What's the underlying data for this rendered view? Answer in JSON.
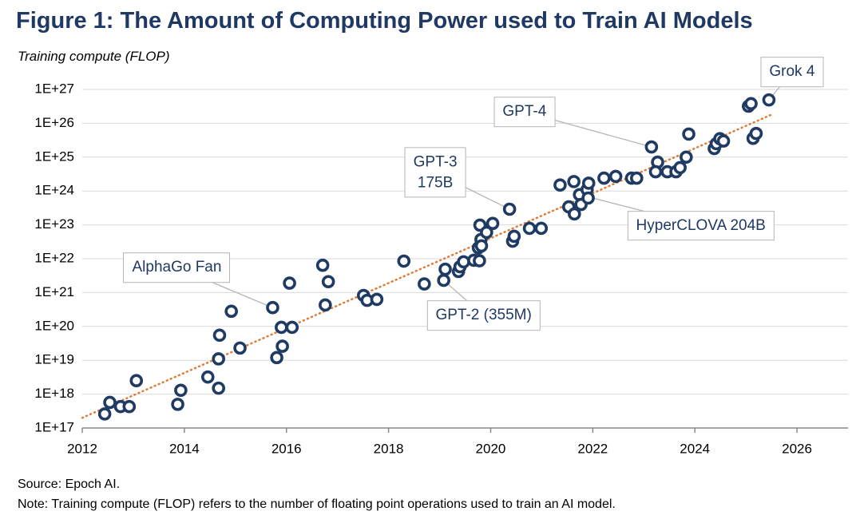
{
  "chart_data": {
    "type": "scatter",
    "title": "Figure 1: The Amount of Computing Power used to Train AI Models",
    "y_label": "Training compute (FLOP)",
    "source": "Source: Epoch AI.",
    "note": "Note: Training compute (FLOP) refers to the number of floating point operations used to train an AI model.",
    "log_y": true,
    "grid": true,
    "color": "#1f3b63",
    "xlim": [
      2012,
      2027
    ],
    "xticks": [
      2012,
      2014,
      2016,
      2018,
      2020,
      2022,
      2024,
      2026
    ],
    "ylim": [
      1e+17,
      1e+27
    ],
    "yticks": [
      {
        "value": 1e+17,
        "label": "1E+17"
      },
      {
        "value": 1e+18,
        "label": "1E+18"
      },
      {
        "value": 1e+19,
        "label": "1E+19"
      },
      {
        "value": 1e+20,
        "label": "1E+20"
      },
      {
        "value": 1e+21,
        "label": "1E+21"
      },
      {
        "value": 1e+22,
        "label": "1E+22"
      },
      {
        "value": 1e+23,
        "label": "1E+23"
      },
      {
        "value": 1e+24,
        "label": "1E+24"
      },
      {
        "value": 1e+25,
        "label": "1E+25"
      },
      {
        "value": 1e+26,
        "label": "1E+26"
      },
      {
        "value": 1e+27,
        "label": "1E+27"
      }
    ],
    "x": [
      2012.44,
      2012.54,
      2012.75,
      2012.92,
      2013.06,
      2013.87,
      2013.93,
      2014.46,
      2014.67,
      2014.67,
      2014.69,
      2014.92,
      2015.09,
      2015.73,
      2015.81,
      2015.92,
      2015.9,
      2016.06,
      2016.11,
      2016.71,
      2016.82,
      2016.76,
      2017.51,
      2017.58,
      2017.77,
      2018.3,
      2018.7,
      2019.08,
      2019.11,
      2019.37,
      2019.4,
      2019.47,
      2019.67,
      2019.76,
      2019.78,
      2019.81,
      2019.82,
      2019.79,
      2019.92,
      2020.04,
      2020.37,
      2020.43,
      2020.46,
      2020.76,
      2020.99,
      2021.36,
      2021.53,
      2021.63,
      2021.64,
      2021.74,
      2021.77,
      2021.89,
      2021.92,
      2021.91,
      2022.22,
      2022.45,
      2022.76,
      2022.86,
      2023.15,
      2023.27,
      2023.23,
      2023.46,
      2023.63,
      2023.71,
      2023.83,
      2023.88,
      2024.38,
      2024.42,
      2024.49,
      2024.56,
      2025.05,
      2025.1,
      2025.14,
      2025.2,
      2025.45
    ],
    "values": [
      2.6e+17,
      5.7e+17,
      4.3e+17,
      4.3e+17,
      2.5e+18,
      5e+17,
      1.3e+18,
      3.2e+18,
      1.5e+18,
      1.1e+19,
      5.5e+19,
      2.8e+20,
      2.3e+19,
      3.6e+20,
      1.2e+19,
      2.6e+19,
      9.4e+19,
      1.9e+21,
      9.4e+19,
      6.4e+21,
      2.1e+21,
      4.3e+20,
      8.2e+20,
      5.9e+20,
      6.3e+20,
      8.5e+21,
      1.8e+21,
      2.3e+21,
      4.9e+21,
      4.2e+21,
      5.8e+21,
      8.1e+21,
      9e+21,
      2.1e+22,
      8.7e+21,
      3.7e+22,
      2.4e+22,
      9.8e+22,
      6e+22,
      1.1e+23,
      2.9e+23,
      3.3e+22,
      4.6e+22,
      7.9e+22,
      7.9e+22,
      1.5e+24,
      3.4e+23,
      1.9e+24,
      2.1e+23,
      7.8e+23,
      4e+23,
      1.1e+24,
      1.7e+24,
      6.2e+23,
      2.4e+24,
      2.7e+24,
      2.4e+24,
      2.4e+24,
      2e+25,
      7.1e+24,
      3.7e+24,
      3.7e+24,
      3.7e+24,
      4.9e+24,
      1e+25,
      4.8e+25,
      1.8e+25,
      2.5e+25,
      3.5e+25,
      3e+25,
      3.2e+26,
      3.8e+26,
      3.6e+25,
      5e+25,
      4.9e+26
    ],
    "trend": {
      "color": "#e07b39",
      "x": [
        2012,
        2025.5
      ],
      "values": [
        2e+17,
        1.8e+26
      ]
    },
    "annotations": [
      {
        "text": "AlphaGo Fan",
        "x": 2015.73,
        "y": 3.6e+20
      },
      {
        "text": "GPT-2 (355M)",
        "x": 2019.08,
        "y": 2.3e+21
      },
      {
        "text": "GPT-3\n175B",
        "x": 2020.37,
        "y": 2.9e+23
      },
      {
        "text": "GPT-4",
        "x": 2023.15,
        "y": 2e+25
      },
      {
        "text": "HyperCLOVA 204B",
        "x": 2021.74,
        "y": 7.8e+23
      },
      {
        "text": "Grok 4",
        "x": 2025.45,
        "y": 4.9e+26
      }
    ]
  }
}
